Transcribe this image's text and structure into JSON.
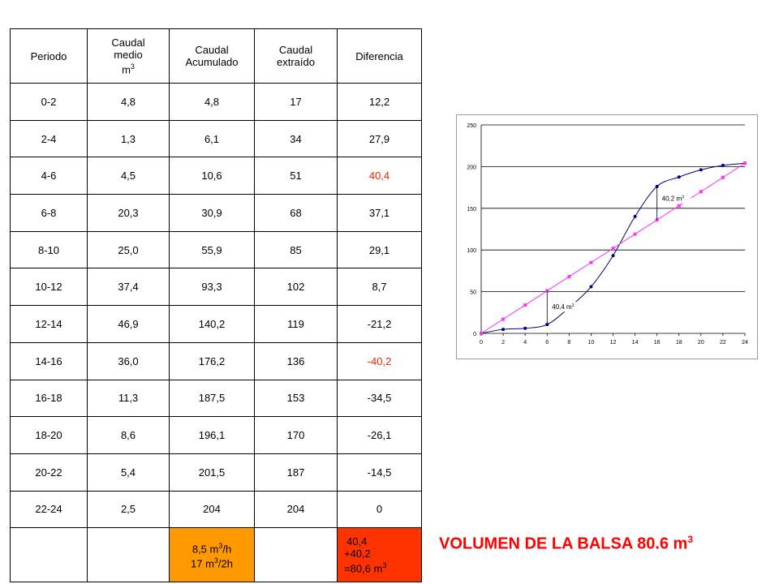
{
  "table": {
    "headers": {
      "periodo": "Periodo",
      "caudal_medio": "Caudal medio",
      "caudal_medio_unit": "m",
      "caudal_medio_unit_exp": "3",
      "caudal_acumulado": "Caudal Acumulado",
      "caudal_extraido": "Caudal extraído",
      "diferencia": "Diferencia"
    },
    "rows": [
      {
        "periodo": "0-2",
        "medio": "4,8",
        "acumulado": "4,8",
        "extraido": "17",
        "diferencia": "12,2",
        "highlight": false
      },
      {
        "periodo": "2-4",
        "medio": "1,3",
        "acumulado": "6,1",
        "extraido": "34",
        "diferencia": "27,9",
        "highlight": false
      },
      {
        "periodo": "4-6",
        "medio": "4,5",
        "acumulado": "10,6",
        "extraido": "51",
        "diferencia": "40,4",
        "highlight": true
      },
      {
        "periodo": "6-8",
        "medio": "20,3",
        "acumulado": "30,9",
        "extraido": "68",
        "diferencia": "37,1",
        "highlight": false
      },
      {
        "periodo": "8-10",
        "medio": "25,0",
        "acumulado": "55,9",
        "extraido": "85",
        "diferencia": "29,1",
        "highlight": false
      },
      {
        "periodo": "10-12",
        "medio": "37,4",
        "acumulado": "93,3",
        "extraido": "102",
        "diferencia": "8,7",
        "highlight": false
      },
      {
        "periodo": "12-14",
        "medio": "46,9",
        "acumulado": "140,2",
        "extraido": "119",
        "diferencia": "-21,2",
        "highlight": false
      },
      {
        "periodo": "14-16",
        "medio": "36,0",
        "acumulado": "176,2",
        "extraido": "136",
        "diferencia": "-40,2",
        "highlight": true
      },
      {
        "periodo": "16-18",
        "medio": "11,3",
        "acumulado": "187,5",
        "extraido": "153",
        "diferencia": "-34,5",
        "highlight": false
      },
      {
        "periodo": "18-20",
        "medio": "8,6",
        "acumulado": "196,1",
        "extraido": "170",
        "diferencia": "-26,1",
        "highlight": false
      },
      {
        "periodo": "20-22",
        "medio": "5,4",
        "acumulado": "201,5",
        "extraido": "187",
        "diferencia": "-14,5",
        "highlight": false
      },
      {
        "periodo": "22-24",
        "medio": "2,5",
        "acumulado": "204",
        "extraido": "204",
        "diferencia": "0",
        "highlight": false
      }
    ],
    "footer": {
      "acumulado_line1": "8,5 m",
      "acumulado_line1_exp": "3",
      "acumulado_line1_tail": "/h",
      "acumulado_line2": "17 m",
      "acumulado_line2_exp": "3",
      "acumulado_line2_tail": "/2h",
      "diferencia_line1": "40,4",
      "diferencia_line2": "+40,2",
      "diferencia_line3": "=80,6 m",
      "diferencia_line3_exp": "3"
    }
  },
  "title": {
    "text": "VOLUMEN DE LA BALSA 80.6 m",
    "exp": "3"
  },
  "colors": {
    "accumulated_series": "#000080",
    "extracted_series": "#ff33ff",
    "highlight_text": "#ff2200",
    "footer_orange": "#ff9900",
    "footer_red": "#ff3300",
    "title_red": "#ff0000"
  },
  "chart_data": {
    "type": "line",
    "x": [
      0,
      2,
      4,
      6,
      8,
      10,
      12,
      14,
      16,
      18,
      20,
      22,
      24
    ],
    "series": [
      {
        "values": [
          0,
          4.8,
          6.1,
          10.6,
          30.9,
          55.9,
          93.3,
          140.2,
          176.2,
          187.5,
          196.1,
          201.5,
          204
        ],
        "color": "#000080",
        "marker": "circle",
        "smooth": true
      },
      {
        "values": [
          0,
          17,
          34,
          51,
          68,
          85,
          102,
          119,
          136,
          153,
          170,
          187,
          204
        ],
        "color": "#ff33ff",
        "marker": "square",
        "smooth": false
      }
    ],
    "xlim": [
      0,
      24
    ],
    "ylim": [
      0,
      250
    ],
    "xticks": [
      0,
      2,
      4,
      6,
      8,
      10,
      12,
      14,
      16,
      18,
      20,
      22,
      24
    ],
    "yticks": [
      0,
      50,
      100,
      150,
      200,
      250
    ],
    "grid": "horizontal",
    "annotations": [
      {
        "text": "40,2 m",
        "exp": "3",
        "x": 16,
        "y_from": 136,
        "y_to": 176.2,
        "label_x": 16,
        "label_y": 160
      },
      {
        "text": "40,4 m",
        "exp": "3",
        "x": 6,
        "y_from": 10.6,
        "y_to": 51,
        "label_x": 6,
        "label_y": 30
      }
    ]
  }
}
